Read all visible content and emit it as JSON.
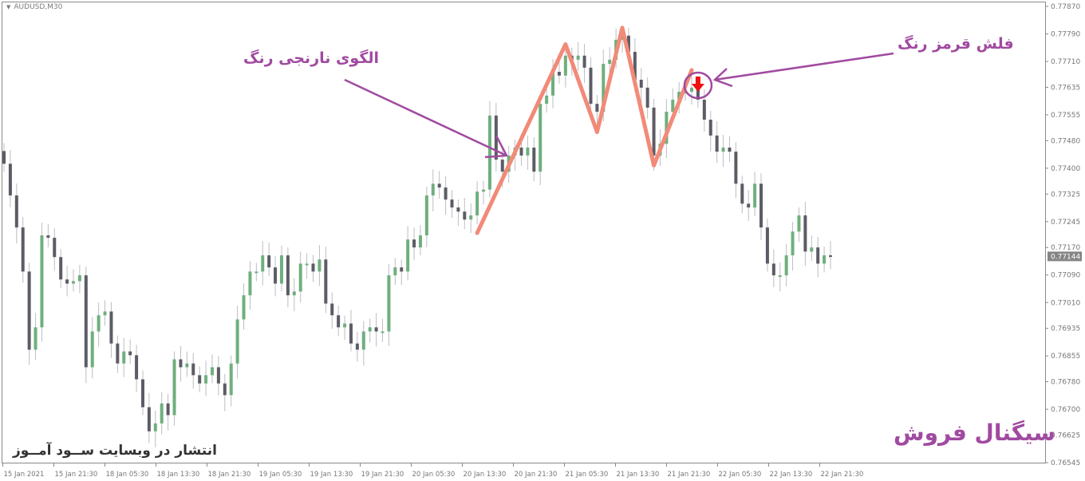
{
  "symbol_label": "AUDUSD,M30",
  "annotations": {
    "pattern_label": "الگوی نارنجی رنگ",
    "arrow_label": "فلش قرمز رنگ",
    "signal_label": "سیگنال فروش",
    "publisher": "انتشار در وبسایت ســود آمــوز"
  },
  "colors": {
    "bull": "#6faf7d",
    "bear": "#5c5c66",
    "wick": "#bdbdc4",
    "pattern_line": "#f28a78",
    "annotation": "#a04aa0",
    "signal_arrow": "#ee1111",
    "price_tag": "#858585"
  },
  "chart_data": {
    "type": "candlestick",
    "symbol": "AUDUSD",
    "timeframe": "M30",
    "ylim": [
      0.76545,
      0.7787
    ],
    "y_ticks": [
      "0.77870",
      "0.77790",
      "0.77710",
      "0.77635",
      "0.77555",
      "0.77480",
      "0.77400",
      "0.77325",
      "0.77245",
      "0.77170",
      "0.77090",
      "0.77010",
      "0.76935",
      "0.76855",
      "0.76780",
      "0.76700",
      "0.76625",
      "0.76545"
    ],
    "x_ticks": [
      "15 Jan 2021",
      "15 Jan 21:30",
      "18 Jan 05:30",
      "18 Jan 13:30",
      "18 Jan 21:30",
      "19 Jan 05:30",
      "19 Jan 13:30",
      "19 Jan 21:30",
      "20 Jan 05:30",
      "20 Jan 13:30",
      "20 Jan 21:30",
      "21 Jan 05:30",
      "21 Jan 13:30",
      "21 Jan 21:30",
      "22 Jan 05:30",
      "22 Jan 13:30",
      "22 Jan 21:30"
    ],
    "current_price": "0.77144",
    "first_open": 0.7745,
    "closes": [
      0.77413,
      0.77321,
      0.77228,
      0.771,
      0.76873,
      0.76938,
      0.77205,
      0.77198,
      0.77142,
      0.77077,
      0.77065,
      0.77072,
      0.77089,
      0.76822,
      0.76926,
      0.76973,
      0.76984,
      0.76891,
      0.76833,
      0.76868,
      0.76857,
      0.76787,
      0.76706,
      0.76636,
      0.76659,
      0.76717,
      0.76683,
      0.76845,
      0.76822,
      0.76833,
      0.76799,
      0.76775,
      0.76799,
      0.76822,
      0.76775,
      0.76741,
      0.76833,
      0.76961,
      0.77031,
      0.771,
      0.771,
      0.77147,
      0.77112,
      0.77065,
      0.77147,
      0.77031,
      0.77042,
      0.77123,
      0.77123,
      0.771,
      0.77135,
      0.77007,
      0.76973,
      0.76938,
      0.76949,
      0.76891,
      0.76873,
      0.76926,
      0.76938,
      0.76926,
      0.76926,
      0.77089,
      0.77112,
      0.771,
      0.77193,
      0.7717,
      0.77205,
      0.77321,
      0.77355,
      0.77344,
      0.77309,
      0.77286,
      0.77274,
      0.77251,
      0.77263,
      0.77332,
      0.77338,
      0.77553,
      0.77425,
      0.7739,
      0.77437,
      0.7746,
      0.77437,
      0.7746,
      0.7739,
      0.77587,
      0.77611,
      0.7768,
      0.77669,
      0.77727,
      0.77715,
      0.77727,
      0.77692,
      0.77587,
      0.77564,
      0.77703,
      0.77715,
      0.77773,
      0.77785,
      0.77738,
      0.77657,
      0.77634,
      0.77576,
      0.77437,
      0.77471,
      0.77564,
      0.77599,
      0.77622,
      0.77622,
      0.77634,
      0.77599,
      0.77541,
      0.77495,
      0.77448,
      0.7746,
      0.77448,
      0.77355,
      0.77297,
      0.77286,
      0.77355,
      0.77228,
      0.77123,
      0.77089,
      0.77089,
      0.77147,
      0.77216,
      0.77263,
      0.77158,
      0.7717,
      0.77123,
      0.77147,
      0.77144
    ],
    "pattern_points": [
      0.77212,
      0.7776,
      0.77505,
      0.77808,
      0.77408,
      0.77685
    ],
    "pattern_bar_index": [
      75,
      89,
      94,
      98,
      103,
      109
    ],
    "signal_bar_index": 110
  }
}
